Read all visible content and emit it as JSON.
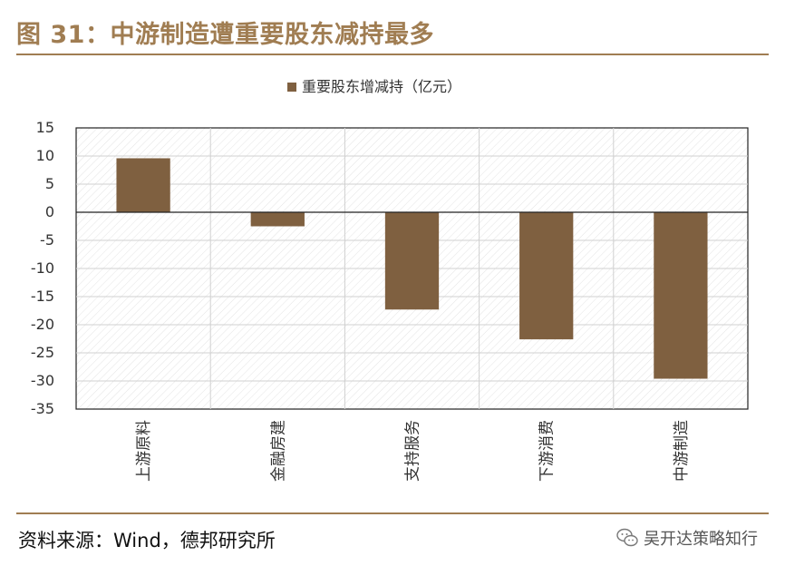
{
  "figure": {
    "title": "图 31：中游制造遭重要股东减持最多",
    "source": "资料来源：Wind，德邦研究所",
    "watermark": "吴开达策略知行"
  },
  "chart_data": {
    "type": "bar",
    "categories": [
      "上游原料",
      "金融房建",
      "支持服务",
      "下游消费",
      "中游制造"
    ],
    "series": [
      {
        "name": "重要股东增减持（亿元）",
        "values": [
          9.6,
          -2.5,
          -17.3,
          -22.6,
          -29.6
        ]
      }
    ],
    "ylim": [
      -35,
      15
    ],
    "yticks": [
      15,
      10,
      5,
      0,
      -5,
      -10,
      -15,
      -20,
      -25,
      -30,
      -35
    ],
    "ytick_labels": [
      "15",
      "10",
      "5",
      "0",
      "-5",
      "-10",
      "-15",
      "-20",
      "-25",
      "-30",
      "-35"
    ],
    "legend_position": "top-center",
    "grid": true,
    "colors": {
      "bar": "#7f6040",
      "accent": "#a07d52"
    }
  }
}
